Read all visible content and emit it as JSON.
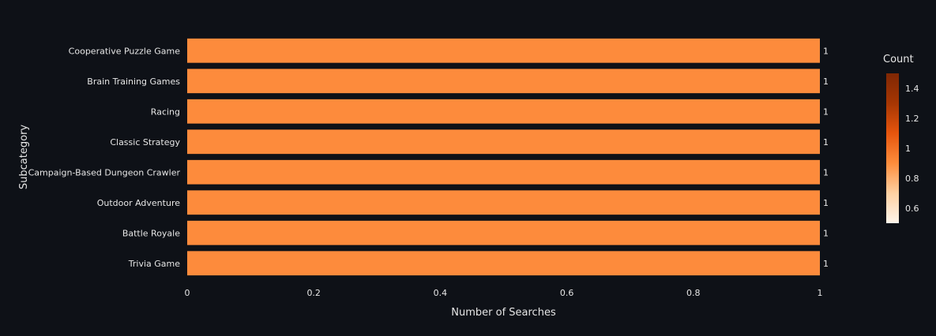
{
  "chart_data": {
    "type": "bar",
    "orientation": "horizontal",
    "categories": [
      "Cooperative Puzzle Game",
      "Brain Training Games",
      "Racing",
      "Classic Strategy",
      "Campaign-Based Dungeon Crawler",
      "Outdoor Adventure",
      "Battle Royale",
      "Trivia Game"
    ],
    "values": [
      1,
      1,
      1,
      1,
      1,
      1,
      1,
      1
    ],
    "data_labels": [
      "1",
      "1",
      "1",
      "1",
      "1",
      "1",
      "1",
      "1"
    ],
    "xlabel": "Number of Searches",
    "ylabel": "Subcategory",
    "xlim": [
      0,
      1
    ],
    "x_ticks": [
      "0",
      "0.2",
      "0.4",
      "0.6",
      "0.8",
      "1"
    ],
    "x_tick_values": [
      0,
      0.2,
      0.4,
      0.6,
      0.8,
      1
    ],
    "grid": false,
    "bar_color": "#fd8b3c",
    "background": "#0e1117",
    "colorbar": {
      "title": "Count",
      "range": [
        0.5,
        1.5
      ],
      "ticks": [
        "0.6",
        "0.8",
        "1",
        "1.2",
        "1.4"
      ],
      "tick_values": [
        0.6,
        0.8,
        1.0,
        1.2,
        1.4
      ],
      "colors": [
        "#fff5eb",
        "#fdd0a2",
        "#fd8d3c",
        "#e6550d",
        "#a63603",
        "#7f2704"
      ]
    }
  }
}
